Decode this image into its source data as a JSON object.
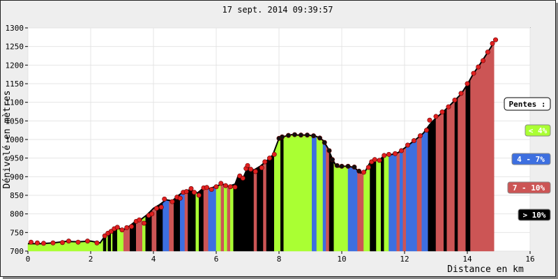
{
  "chart_data": {
    "type": "area",
    "title": "17 sept. 2014 09:39:57",
    "xlabel": "Distance en km",
    "ylabel": "Dénivelé en mètres",
    "xlim": [
      0,
      16
    ],
    "ylim": [
      700,
      1300
    ],
    "x_ticks": [
      "0",
      "2",
      "4",
      "6",
      "8",
      "10",
      "12",
      "14",
      "16"
    ],
    "y_ticks": [
      "700",
      "750",
      "800",
      "850",
      "900",
      "950",
      "1000",
      "1050",
      "1100",
      "1150",
      "1200",
      "1250",
      "1300"
    ],
    "legend": {
      "title": "Pentes :",
      "placement": "right",
      "items": [
        {
          "label": "< 4%",
          "color": "#aaff33",
          "text_color": "#ffffff"
        },
        {
          "label": "4 - 7%",
          "color": "#3d6fe0",
          "text_color": "#ffffff"
        },
        {
          "label": "7 - 10%",
          "color": "#cc5555",
          "text_color": "#ffffff"
        },
        {
          "label": "> 10%",
          "color": "#000000",
          "text_color": "#ffffff"
        }
      ]
    },
    "profile": [
      [
        0.0,
        720
      ],
      [
        0.4,
        720
      ],
      [
        0.8,
        722
      ],
      [
        1.2,
        726
      ],
      [
        1.6,
        725
      ],
      [
        2.0,
        727
      ],
      [
        2.3,
        722
      ],
      [
        2.45,
        740
      ],
      [
        2.6,
        750
      ],
      [
        2.75,
        758
      ],
      [
        2.9,
        762
      ],
      [
        3.0,
        755
      ],
      [
        3.2,
        765
      ],
      [
        3.4,
        778
      ],
      [
        3.6,
        785
      ],
      [
        3.8,
        798
      ],
      [
        4.0,
        815
      ],
      [
        4.2,
        825
      ],
      [
        4.4,
        838
      ],
      [
        4.6,
        835
      ],
      [
        4.8,
        850
      ],
      [
        5.0,
        862
      ],
      [
        5.2,
        865
      ],
      [
        5.4,
        856
      ],
      [
        5.6,
        870
      ],
      [
        5.8,
        868
      ],
      [
        6.0,
        875
      ],
      [
        6.2,
        880
      ],
      [
        6.4,
        874
      ],
      [
        6.6,
        880
      ],
      [
        6.7,
        902
      ],
      [
        6.85,
        895
      ],
      [
        7.0,
        925
      ],
      [
        7.2,
        918
      ],
      [
        7.4,
        928
      ],
      [
        7.6,
        942
      ],
      [
        7.8,
        958
      ],
      [
        8.0,
        1003
      ],
      [
        8.2,
        1009
      ],
      [
        8.4,
        1013
      ],
      [
        8.6,
        1012
      ],
      [
        8.8,
        1012
      ],
      [
        9.0,
        1011
      ],
      [
        9.2,
        1008
      ],
      [
        9.4,
        998
      ],
      [
        9.55,
        978
      ],
      [
        9.7,
        948
      ],
      [
        9.8,
        932
      ],
      [
        9.9,
        926
      ],
      [
        10.0,
        928
      ],
      [
        10.2,
        928
      ],
      [
        10.4,
        925
      ],
      [
        10.6,
        910
      ],
      [
        10.75,
        915
      ],
      [
        10.9,
        938
      ],
      [
        11.0,
        946
      ],
      [
        11.2,
        944
      ],
      [
        11.35,
        958
      ],
      [
        11.6,
        960
      ],
      [
        11.8,
        965
      ],
      [
        12.0,
        977
      ],
      [
        12.2,
        990
      ],
      [
        12.4,
        1003
      ],
      [
        12.6,
        1017
      ],
      [
        12.8,
        1040
      ],
      [
        13.0,
        1058
      ],
      [
        13.2,
        1072
      ],
      [
        13.4,
        1088
      ],
      [
        13.6,
        1105
      ],
      [
        13.8,
        1122
      ],
      [
        14.0,
        1148
      ],
      [
        14.2,
        1178
      ],
      [
        14.4,
        1202
      ],
      [
        14.6,
        1228
      ],
      [
        14.75,
        1248
      ],
      [
        14.85,
        1262
      ]
    ],
    "slope_segments": [
      {
        "from": 0.0,
        "to": 2.4,
        "class": "< 4%"
      },
      {
        "from": 2.4,
        "to": 2.5,
        "class": "> 10%"
      },
      {
        "from": 2.5,
        "to": 2.55,
        "class": "< 4%"
      },
      {
        "from": 2.55,
        "to": 2.65,
        "class": "> 10%"
      },
      {
        "from": 2.65,
        "to": 2.7,
        "class": "< 4%"
      },
      {
        "from": 2.7,
        "to": 2.85,
        "class": "> 10%"
      },
      {
        "from": 2.85,
        "to": 3.05,
        "class": "< 4%"
      },
      {
        "from": 3.05,
        "to": 3.25,
        "class": "7 - 10%"
      },
      {
        "from": 3.25,
        "to": 3.45,
        "class": "> 10%"
      },
      {
        "from": 3.45,
        "to": 3.65,
        "class": "7 - 10%"
      },
      {
        "from": 3.65,
        "to": 3.75,
        "class": "< 4%"
      },
      {
        "from": 3.75,
        "to": 3.95,
        "class": "> 10%"
      },
      {
        "from": 3.95,
        "to": 4.1,
        "class": "7 - 10%"
      },
      {
        "from": 4.1,
        "to": 4.3,
        "class": "> 10%"
      },
      {
        "from": 4.3,
        "to": 4.5,
        "class": "4 - 7%"
      },
      {
        "from": 4.5,
        "to": 4.65,
        "class": "7 - 10%"
      },
      {
        "from": 4.65,
        "to": 4.85,
        "class": "> 10%"
      },
      {
        "from": 4.85,
        "to": 5.0,
        "class": "4 - 7%"
      },
      {
        "from": 5.0,
        "to": 5.1,
        "class": "7 - 10%"
      },
      {
        "from": 5.1,
        "to": 5.35,
        "class": "> 10%"
      },
      {
        "from": 5.35,
        "to": 5.45,
        "class": "< 4%"
      },
      {
        "from": 5.45,
        "to": 5.6,
        "class": "> 10%"
      },
      {
        "from": 5.6,
        "to": 5.75,
        "class": "7 - 10%"
      },
      {
        "from": 5.75,
        "to": 6.0,
        "class": "4 - 7%"
      },
      {
        "from": 6.0,
        "to": 6.15,
        "class": "< 4%"
      },
      {
        "from": 6.15,
        "to": 6.25,
        "class": "7 - 10%"
      },
      {
        "from": 6.25,
        "to": 6.35,
        "class": "< 4%"
      },
      {
        "from": 6.35,
        "to": 6.45,
        "class": "7 - 10%"
      },
      {
        "from": 6.45,
        "to": 6.55,
        "class": "< 4%"
      },
      {
        "from": 6.55,
        "to": 7.2,
        "class": "> 10%"
      },
      {
        "from": 7.2,
        "to": 7.3,
        "class": "7 - 10%"
      },
      {
        "from": 7.3,
        "to": 7.5,
        "class": "> 10%"
      },
      {
        "from": 7.5,
        "to": 7.6,
        "class": "7 - 10%"
      },
      {
        "from": 7.6,
        "to": 7.85,
        "class": "> 10%"
      },
      {
        "from": 7.85,
        "to": 8.05,
        "class": "< 4%"
      },
      {
        "from": 8.05,
        "to": 8.15,
        "class": "> 10%"
      },
      {
        "from": 8.15,
        "to": 9.05,
        "class": "< 4%"
      },
      {
        "from": 9.05,
        "to": 9.2,
        "class": "4 - 7%"
      },
      {
        "from": 9.2,
        "to": 9.4,
        "class": "< 4%"
      },
      {
        "from": 9.4,
        "to": 9.5,
        "class": "4 - 7%"
      },
      {
        "from": 9.5,
        "to": 9.6,
        "class": "7 - 10%"
      },
      {
        "from": 9.6,
        "to": 9.75,
        "class": "> 10%"
      },
      {
        "from": 9.75,
        "to": 10.2,
        "class": "< 4%"
      },
      {
        "from": 10.2,
        "to": 10.5,
        "class": "4 - 7%"
      },
      {
        "from": 10.5,
        "to": 10.7,
        "class": "7 - 10%"
      },
      {
        "from": 10.7,
        "to": 10.9,
        "class": "< 4%"
      },
      {
        "from": 10.9,
        "to": 11.1,
        "class": "> 10%"
      },
      {
        "from": 11.1,
        "to": 11.25,
        "class": "< 4%"
      },
      {
        "from": 11.25,
        "to": 11.35,
        "class": "> 10%"
      },
      {
        "from": 11.35,
        "to": 11.5,
        "class": "< 4%"
      },
      {
        "from": 11.5,
        "to": 11.75,
        "class": "4 - 7%"
      },
      {
        "from": 11.75,
        "to": 11.85,
        "class": "7 - 10%"
      },
      {
        "from": 11.85,
        "to": 11.95,
        "class": "4 - 7%"
      },
      {
        "from": 11.95,
        "to": 12.05,
        "class": "7 - 10%"
      },
      {
        "from": 12.05,
        "to": 12.4,
        "class": "4 - 7%"
      },
      {
        "from": 12.4,
        "to": 12.55,
        "class": "7 - 10%"
      },
      {
        "from": 12.55,
        "to": 12.75,
        "class": "4 - 7%"
      },
      {
        "from": 12.75,
        "to": 13.0,
        "class": "> 10%"
      },
      {
        "from": 13.0,
        "to": 13.25,
        "class": "7 - 10%"
      },
      {
        "from": 13.25,
        "to": 13.35,
        "class": "> 10%"
      },
      {
        "from": 13.35,
        "to": 13.6,
        "class": "7 - 10%"
      },
      {
        "from": 13.6,
        "to": 13.7,
        "class": "> 10%"
      },
      {
        "from": 13.7,
        "to": 13.95,
        "class": "7 - 10%"
      },
      {
        "from": 13.95,
        "to": 14.1,
        "class": "> 10%"
      },
      {
        "from": 14.1,
        "to": 14.85,
        "class": "7 - 10%"
      }
    ],
    "markers": [
      [
        0.1,
        724
      ],
      [
        0.3,
        722
      ],
      [
        0.5,
        721
      ],
      [
        0.8,
        722
      ],
      [
        1.1,
        723
      ],
      [
        1.3,
        727
      ],
      [
        1.6,
        724
      ],
      [
        1.9,
        727
      ],
      [
        2.2,
        722
      ],
      [
        2.45,
        741
      ],
      [
        2.55,
        748
      ],
      [
        2.65,
        753
      ],
      [
        2.75,
        760
      ],
      [
        2.85,
        764
      ],
      [
        3.0,
        757
      ],
      [
        3.15,
        763
      ],
      [
        3.3,
        766
      ],
      [
        3.45,
        780
      ],
      [
        3.55,
        784
      ],
      [
        3.7,
        775
      ],
      [
        3.85,
        796
      ],
      [
        3.95,
        800
      ],
      [
        4.1,
        815
      ],
      [
        4.25,
        818
      ],
      [
        4.35,
        840
      ],
      [
        4.6,
        833
      ],
      [
        4.75,
        845
      ],
      [
        4.85,
        842
      ],
      [
        4.95,
        858
      ],
      [
        5.05,
        860
      ],
      [
        5.2,
        868
      ],
      [
        5.3,
        858
      ],
      [
        5.45,
        850
      ],
      [
        5.6,
        870
      ],
      [
        5.7,
        871
      ],
      [
        5.85,
        866
      ],
      [
        6.0,
        873
      ],
      [
        6.15,
        882
      ],
      [
        6.3,
        876
      ],
      [
        6.45,
        873
      ],
      [
        6.6,
        872
      ],
      [
        6.75,
        902
      ],
      [
        6.85,
        896
      ],
      [
        6.95,
        922
      ],
      [
        7.0,
        930
      ],
      [
        7.1,
        920
      ],
      [
        7.25,
        914
      ],
      [
        7.45,
        924
      ],
      [
        7.55,
        940
      ],
      [
        7.7,
        950
      ],
      [
        7.85,
        960
      ],
      [
        8.0,
        1003
      ],
      [
        8.1,
        1007
      ],
      [
        8.3,
        1011
      ],
      [
        8.5,
        1013
      ],
      [
        8.7,
        1012
      ],
      [
        8.9,
        1012
      ],
      [
        9.1,
        1010
      ],
      [
        9.3,
        1004
      ],
      [
        9.45,
        992
      ],
      [
        9.6,
        970
      ],
      [
        9.7,
        946
      ],
      [
        9.85,
        930
      ],
      [
        10.0,
        928
      ],
      [
        10.2,
        928
      ],
      [
        10.4,
        926
      ],
      [
        10.55,
        915
      ],
      [
        10.7,
        912
      ],
      [
        10.85,
        925
      ],
      [
        10.95,
        940
      ],
      [
        11.05,
        946
      ],
      [
        11.2,
        944
      ],
      [
        11.35,
        957
      ],
      [
        11.5,
        960
      ],
      [
        11.7,
        962
      ],
      [
        11.9,
        970
      ],
      [
        12.1,
        985
      ],
      [
        12.3,
        997
      ],
      [
        12.5,
        1010
      ],
      [
        12.7,
        1025
      ],
      [
        12.8,
        1052
      ],
      [
        13.0,
        1062
      ],
      [
        13.2,
        1074
      ],
      [
        13.4,
        1088
      ],
      [
        13.6,
        1106
      ],
      [
        13.8,
        1124
      ],
      [
        14.0,
        1150
      ],
      [
        14.2,
        1178
      ],
      [
        14.35,
        1195
      ],
      [
        14.5,
        1212
      ],
      [
        14.65,
        1235
      ],
      [
        14.8,
        1258
      ],
      [
        14.9,
        1268
      ]
    ]
  }
}
